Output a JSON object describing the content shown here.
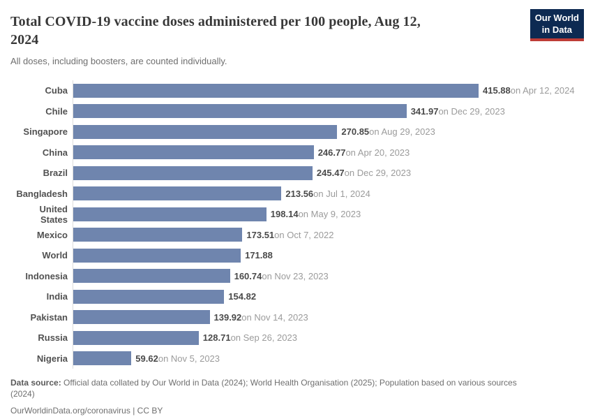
{
  "header": {
    "title": "Total COVID-19 vaccine doses administered per 100 people, Aug 12,\n2024",
    "subtitle": "All doses, including boosters, are counted individually.",
    "logo": {
      "line1": "Our World",
      "line2": "in Data",
      "bg_color": "#0d2a52",
      "accent_color": "#be3c37"
    }
  },
  "chart_data": {
    "type": "bar",
    "orientation": "horizontal",
    "title": "Total COVID-19 vaccine doses administered per 100 people, Aug 12, 2024",
    "subtitle": "All doses, including boosters, are counted individually.",
    "categories": [
      "Cuba",
      "Chile",
      "Singapore",
      "China",
      "Brazil",
      "Bangladesh",
      "United States",
      "Mexico",
      "World",
      "Indonesia",
      "India",
      "Pakistan",
      "Russia",
      "Nigeria"
    ],
    "values": [
      415.88,
      341.97,
      270.85,
      246.77,
      245.47,
      213.56,
      198.14,
      173.51,
      171.88,
      160.74,
      154.82,
      139.92,
      128.71,
      59.62
    ],
    "date_labels": [
      "on Apr 12, 2024",
      "on Dec 29, 2023",
      "on Aug 29, 2023",
      "on Apr 20, 2023",
      "on Dec 29, 2023",
      "on Jul 1, 2024",
      "on May 9, 2023",
      "on Oct 7, 2022",
      "",
      "on Nov 23, 2023",
      "",
      "on Nov 14, 2023",
      "on Sep 26, 2023",
      "on Nov 5, 2023"
    ],
    "xlim": [
      0,
      416
    ],
    "grid": false,
    "legend": false,
    "bar_color": "#6f85ae",
    "axis_line_color": "#dcdcdc"
  },
  "footer": {
    "data_source_label": "Data source:",
    "data_source_text": "Official data collated by Our World in Data (2024); World Health Organisation (2025); Population based on various sources (2024)",
    "link_text": "OurWorldinData.org/coronavirus",
    "separator": "|",
    "license": "CC BY"
  }
}
